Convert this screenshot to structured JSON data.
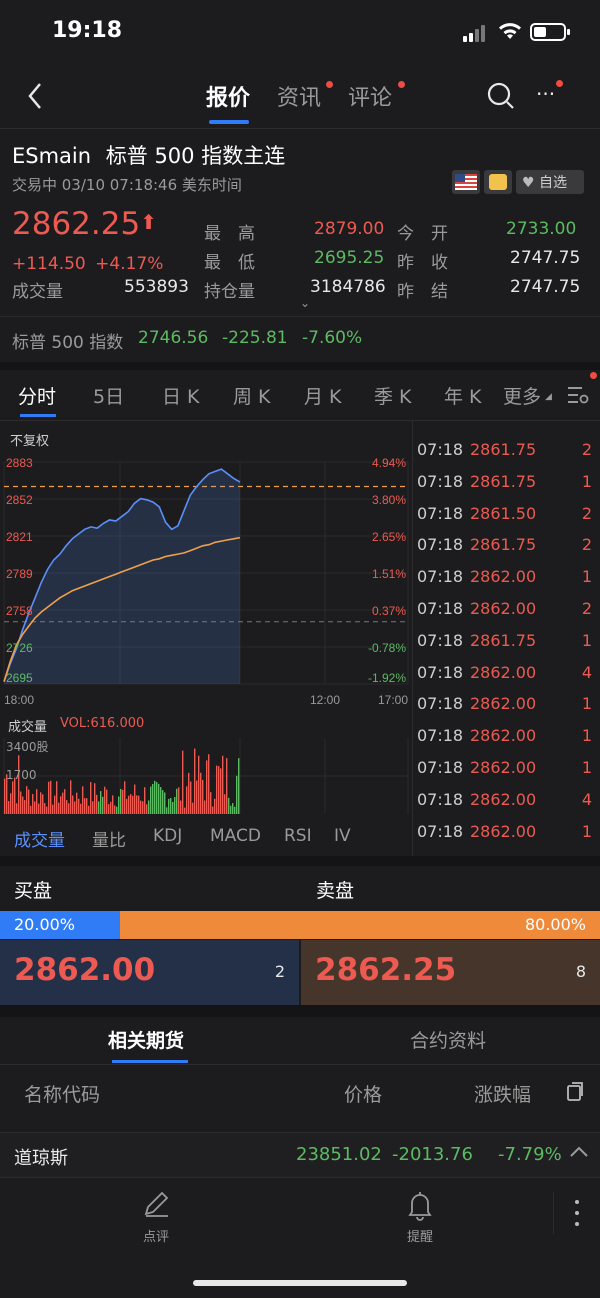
{
  "status_bar": {
    "time": "19:18"
  },
  "nav": {
    "tabs": [
      {
        "label": "报价",
        "active": true,
        "badge": false
      },
      {
        "label": "资讯",
        "active": false,
        "badge": true
      },
      {
        "label": "评论",
        "active": false,
        "badge": true
      }
    ],
    "more_label": "···"
  },
  "instrument": {
    "symbol": "ESmain",
    "name": "标普 500 指数主连",
    "status": "交易中 03/10 07:18:46 美东时间",
    "watch_label": "自选"
  },
  "quote": {
    "price": "2862.25",
    "arrow": "⬆",
    "change": "+114.50",
    "change_pct": "+4.17%",
    "volume_label": "成交量",
    "volume": "553893",
    "open_interest_label": "持仓量",
    "open_interest": "3184786",
    "high_label": "最　高",
    "high": "2879.00",
    "low_label": "最　低",
    "low": "2695.25",
    "today_open_label": "今　开",
    "today_open": "2733.00",
    "prev_close_label": "昨　收",
    "prev_close": "2747.75",
    "prev_settle_label": "昨　结",
    "prev_settle": "2747.75"
  },
  "index_bar": {
    "name": "标普 500 指数",
    "value": "2746.56",
    "change": "-225.81",
    "change_pct": "-7.60%"
  },
  "chart_tabs": [
    "分时",
    "5日",
    "日 K",
    "周 K",
    "月 K",
    "季 K",
    "年 K",
    "更多"
  ],
  "chart_mode": "不复权",
  "chart_data": {
    "type": "line",
    "y_ticks_left": [
      "2883",
      "2852",
      "2821",
      "2789",
      "2758",
      "2726",
      "2695"
    ],
    "y_ticks_right": [
      "4.94%",
      "3.80%",
      "2.65%",
      "1.51%",
      "0.37%",
      "-0.78%",
      "-1.92%"
    ],
    "x_ticks": [
      "18:00",
      "12:00",
      "17:00"
    ],
    "ylim": [
      2695,
      2883
    ],
    "reference_price": 2747.75,
    "last_price": 2862.25,
    "price_series": [
      2697,
      2712,
      2725,
      2741,
      2755,
      2768,
      2781,
      2792,
      2800,
      2805,
      2812,
      2818,
      2822,
      2826,
      2828,
      2827,
      2831,
      2834,
      2833,
      2837,
      2841,
      2848,
      2852,
      2851,
      2849,
      2845,
      2832,
      2826,
      2829,
      2842,
      2855,
      2862,
      2868,
      2873,
      2875,
      2877,
      2873,
      2869,
      2866
    ],
    "avg_series": [
      2697,
      2714,
      2728,
      2737,
      2744,
      2751,
      2756,
      2760,
      2764,
      2768,
      2771,
      2774,
      2776,
      2778,
      2780,
      2782,
      2784,
      2786,
      2788,
      2790,
      2792,
      2794,
      2796,
      2798,
      2800,
      2801,
      2803,
      2804,
      2805,
      2806,
      2808,
      2810,
      2812,
      2813,
      2815,
      2816,
      2817,
      2818,
      2819
    ],
    "volume_label": "成交量",
    "volume_readout": "VOL:616.000",
    "volume_ticks": [
      "3400股",
      "1700"
    ]
  },
  "ticks": [
    {
      "time": "07:18",
      "price": "2861.75",
      "qty": "2"
    },
    {
      "time": "07:18",
      "price": "2861.75",
      "qty": "1"
    },
    {
      "time": "07:18",
      "price": "2861.50",
      "qty": "2"
    },
    {
      "time": "07:18",
      "price": "2861.75",
      "qty": "2"
    },
    {
      "time": "07:18",
      "price": "2862.00",
      "qty": "1"
    },
    {
      "time": "07:18",
      "price": "2862.00",
      "qty": "2"
    },
    {
      "time": "07:18",
      "price": "2861.75",
      "qty": "1"
    },
    {
      "time": "07:18",
      "price": "2862.00",
      "qty": "4"
    },
    {
      "time": "07:18",
      "price": "2862.00",
      "qty": "1"
    },
    {
      "time": "07:18",
      "price": "2862.00",
      "qty": "1"
    },
    {
      "time": "07:18",
      "price": "2862.00",
      "qty": "1"
    },
    {
      "time": "07:18",
      "price": "2862.00",
      "qty": "4"
    },
    {
      "time": "07:18",
      "price": "2862.00",
      "qty": "1"
    }
  ],
  "indicator_tabs": [
    "成交量",
    "量比",
    "KDJ",
    "MACD",
    "RSI",
    "IV"
  ],
  "order_book": {
    "bid_label": "买盘",
    "ask_label": "卖盘",
    "bid_pct": "20.00%",
    "ask_pct": "80.00%",
    "bid_ratio": 0.2,
    "bid_price": "2862.00",
    "bid_qty": "2",
    "ask_price": "2862.25",
    "ask_qty": "8"
  },
  "bottom_tabs": [
    "相关期货",
    "合约资料"
  ],
  "related_table": {
    "headers": {
      "name": "名称代码",
      "price": "价格",
      "change_pct": "涨跌幅"
    }
  },
  "dow_bar": {
    "name": "道琼斯",
    "value": "23851.02",
    "change": "-2013.76",
    "change_pct": "-7.79%"
  },
  "toolbar": {
    "comment_label": "点评",
    "alert_label": "提醒"
  },
  "colors": {
    "up": "#ec5a52",
    "down": "#5cba62",
    "price_line": "#5b8ff9",
    "avg_line": "#f0a04b",
    "bid": "#2f7cf6",
    "ask": "#ef8a3a"
  }
}
